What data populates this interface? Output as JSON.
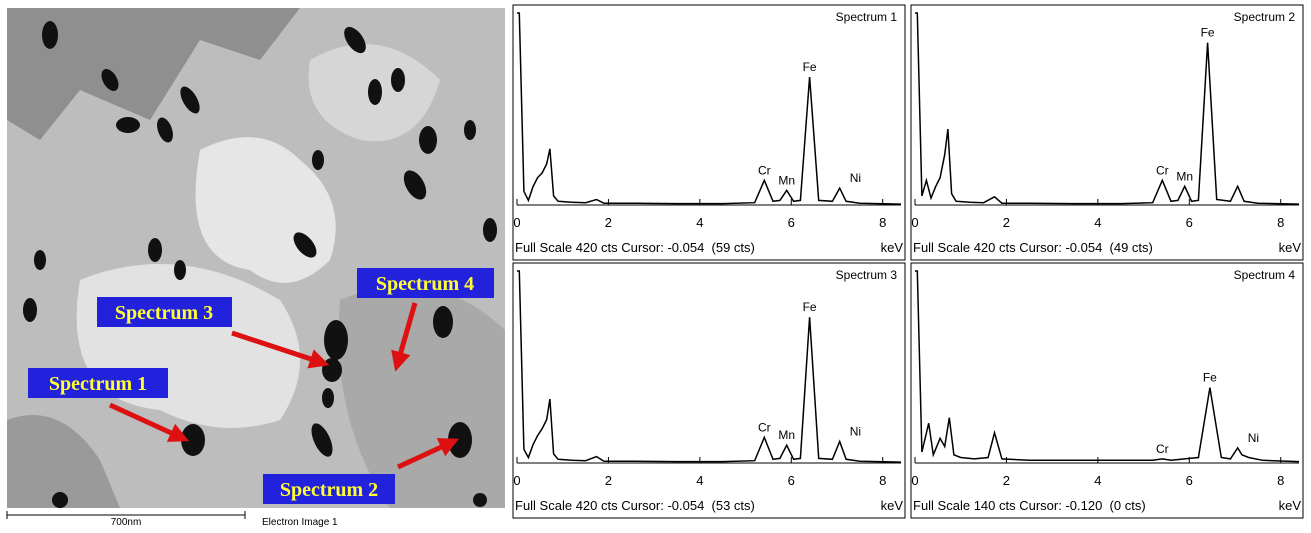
{
  "image": {
    "labels": [
      "Spectrum 1",
      "Spectrum 2",
      "Spectrum 3",
      "Spectrum 4"
    ],
    "scale_bar": "700nm",
    "caption": "Electron Image 1"
  },
  "chart_data": [
    {
      "type": "line",
      "title": "Spectrum 1",
      "footer": "Full Scale 420 cts Cursor: -0.054  (59 cts)",
      "xlabel": "keV",
      "xlim": [
        0,
        8.4
      ],
      "ylim": [
        0,
        420
      ],
      "xticks": [
        0,
        2,
        4,
        6,
        8
      ],
      "color": "#000000",
      "x": [
        0,
        0.05,
        0.15,
        0.25,
        0.35,
        0.45,
        0.55,
        0.65,
        0.72,
        0.8,
        0.9,
        1.2,
        1.5,
        1.74,
        1.9,
        2.5,
        3.5,
        4.5,
        5.2,
        5.41,
        5.6,
        5.75,
        5.9,
        6.05,
        6.2,
        6.4,
        6.6,
        6.9,
        7.06,
        7.2,
        7.5,
        8.4
      ],
      "values": [
        420,
        420,
        30,
        10,
        40,
        60,
        70,
        90,
        123,
        20,
        8,
        6,
        5,
        12,
        4,
        4,
        3,
        3,
        5,
        54,
        8,
        10,
        32,
        8,
        10,
        280,
        10,
        8,
        37,
        8,
        4,
        2
      ],
      "annotations": [
        {
          "text": "Cr",
          "x": 5.41
        },
        {
          "text": "Mn",
          "x": 5.9
        },
        {
          "text": "Fe",
          "x": 6.4
        },
        {
          "text": "Ni",
          "x": 7.06
        }
      ]
    },
    {
      "type": "line",
      "title": "Spectrum 2",
      "footer": "Full Scale 420 cts Cursor: -0.054  (49 cts)",
      "xlabel": "keV",
      "xlim": [
        0,
        8.4
      ],
      "ylim": [
        0,
        420
      ],
      "xticks": [
        0,
        2,
        4,
        6,
        8
      ],
      "color": "#000000",
      "x": [
        0,
        0.05,
        0.15,
        0.25,
        0.35,
        0.45,
        0.55,
        0.65,
        0.72,
        0.8,
        0.9,
        1.2,
        1.5,
        1.74,
        1.9,
        2.5,
        3.5,
        4.5,
        5.2,
        5.41,
        5.6,
        5.75,
        5.9,
        6.05,
        6.2,
        6.4,
        6.6,
        6.9,
        7.06,
        7.2,
        7.5,
        8.4
      ],
      "values": [
        420,
        420,
        20,
        54,
        15,
        40,
        60,
        110,
        166,
        25,
        8,
        6,
        5,
        18,
        4,
        4,
        3,
        3,
        5,
        54,
        8,
        10,
        41,
        8,
        10,
        355,
        12,
        8,
        41,
        8,
        4,
        2
      ],
      "annotations": [
        {
          "text": "Cr",
          "x": 5.41
        },
        {
          "text": "Mn",
          "x": 5.9
        },
        {
          "text": "Fe",
          "x": 6.4
        }
      ]
    },
    {
      "type": "line",
      "title": "Spectrum 3",
      "footer": "Full Scale 420 cts Cursor: -0.054  (53 cts)",
      "xlabel": "keV",
      "xlim": [
        0,
        8.4
      ],
      "ylim": [
        0,
        420
      ],
      "xticks": [
        0,
        2,
        4,
        6,
        8
      ],
      "color": "#000000",
      "x": [
        0,
        0.05,
        0.15,
        0.25,
        0.35,
        0.45,
        0.55,
        0.65,
        0.72,
        0.8,
        0.9,
        1.2,
        1.5,
        1.74,
        1.9,
        2.5,
        3.5,
        4.5,
        5.2,
        5.41,
        5.6,
        5.75,
        5.9,
        6.05,
        6.2,
        6.4,
        6.6,
        6.9,
        7.06,
        7.2,
        7.5,
        8.4
      ],
      "values": [
        420,
        420,
        30,
        12,
        40,
        60,
        75,
        95,
        140,
        20,
        8,
        6,
        5,
        14,
        4,
        4,
        3,
        3,
        5,
        56,
        8,
        10,
        39,
        8,
        10,
        319,
        10,
        8,
        47,
        8,
        4,
        2
      ],
      "annotations": [
        {
          "text": "Cr",
          "x": 5.41
        },
        {
          "text": "Mn",
          "x": 5.9
        },
        {
          "text": "Fe",
          "x": 6.4
        },
        {
          "text": "Ni",
          "x": 7.06
        }
      ]
    },
    {
      "type": "line",
      "title": "Spectrum 4",
      "footer": "Full Scale 140 cts Cursor: -0.120  (0 cts)",
      "xlabel": "keV",
      "xlim": [
        0,
        8.4
      ],
      "ylim": [
        0,
        140
      ],
      "xticks": [
        0,
        2,
        4,
        6,
        8
      ],
      "color": "#000000",
      "x": [
        0,
        0.05,
        0.15,
        0.3,
        0.4,
        0.55,
        0.65,
        0.75,
        0.85,
        1.0,
        1.3,
        1.6,
        1.74,
        1.9,
        2.5,
        3.5,
        4.5,
        5.2,
        5.41,
        5.6,
        5.9,
        6.2,
        6.45,
        6.7,
        6.9,
        7.06,
        7.15,
        7.3,
        7.6,
        8.4
      ],
      "values": [
        140,
        140,
        8,
        29,
        6,
        18,
        12,
        33,
        6,
        4,
        3,
        4,
        22,
        3,
        2,
        2,
        2,
        2,
        3,
        2,
        3,
        4,
        55,
        4,
        3,
        11,
        6,
        4,
        2,
        1
      ],
      "annotations": [
        {
          "text": "Cr",
          "x": 5.41
        },
        {
          "text": "Fe",
          "x": 6.45
        },
        {
          "text": "Ni",
          "x": 7.06
        }
      ]
    }
  ]
}
